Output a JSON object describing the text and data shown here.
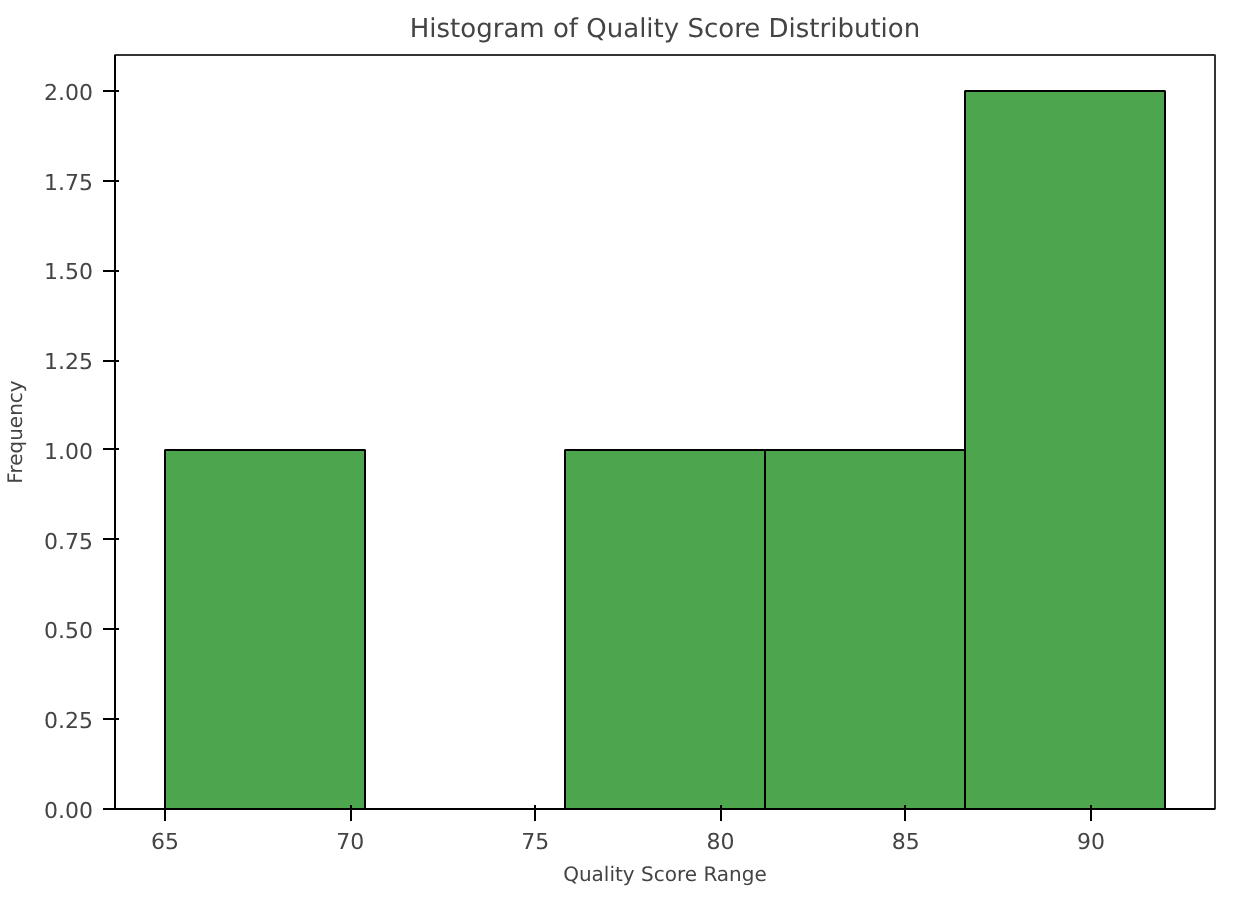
{
  "chart_data": {
    "type": "histogram",
    "title": "Histogram of Quality Score Distribution",
    "xlabel": "Quality Score Range",
    "ylabel": "Frequency",
    "bins": [
      65,
      70.4,
      75.8,
      81.2,
      86.6,
      92
    ],
    "values": [
      1,
      0,
      1,
      1,
      2
    ],
    "color": "#4da64d",
    "xlim": [
      63.65,
      93.35
    ],
    "xticks": [
      65,
      70,
      75,
      80,
      85,
      90
    ],
    "ylim": [
      0,
      2.1
    ],
    "yticks": [
      {
        "value": 0,
        "label": "0.00"
      },
      {
        "value": 0.25,
        "label": "0.25"
      },
      {
        "value": 0.5,
        "label": "0.50"
      },
      {
        "value": 0.75,
        "label": "0.75"
      },
      {
        "value": 1,
        "label": "1.00"
      },
      {
        "value": 1.25,
        "label": "1.25"
      },
      {
        "value": 1.5,
        "label": "1.50"
      },
      {
        "value": 1.75,
        "label": "1.75"
      },
      {
        "value": 2,
        "label": "2.00"
      }
    ],
    "grid": false
  }
}
